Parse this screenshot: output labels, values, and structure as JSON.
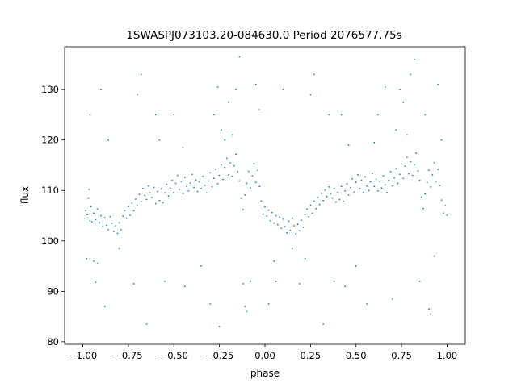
{
  "chart_data": {
    "type": "scatter",
    "title": "1SWASPJ073103.20-084630.0 Period 2076577.75s",
    "xlabel": "phase",
    "ylabel": "flux",
    "xlim": [
      -1.1,
      1.1
    ],
    "ylim": [
      79.5,
      138.5
    ],
    "xticks": [
      {
        "value": -1.0,
        "label": "−1.00"
      },
      {
        "value": -0.75,
        "label": "−0.75"
      },
      {
        "value": -0.5,
        "label": "−0.50"
      },
      {
        "value": -0.25,
        "label": "−0.25"
      },
      {
        "value": 0.0,
        "label": "0.00"
      },
      {
        "value": 0.25,
        "label": "0.25"
      },
      {
        "value": 0.5,
        "label": "0.50"
      },
      {
        "value": 0.75,
        "label": "0.75"
      },
      {
        "value": 1.0,
        "label": "1.00"
      }
    ],
    "yticks": [
      {
        "value": 80,
        "label": "80"
      },
      {
        "value": 90,
        "label": "90"
      },
      {
        "value": 100,
        "label": "100"
      },
      {
        "value": 110,
        "label": "110"
      },
      {
        "value": 120,
        "label": "120"
      },
      {
        "value": 130,
        "label": "130"
      }
    ],
    "grid": false,
    "marker_color": "#1f77b4",
    "series": [
      {
        "values": [
          [
            -0.99,
            104.5
          ],
          [
            -0.985,
            106.0
          ],
          [
            -0.975,
            105.2
          ],
          [
            -0.97,
            108.5
          ],
          [
            -0.965,
            110.2
          ],
          [
            -0.96,
            104.0
          ],
          [
            -0.955,
            106.8
          ],
          [
            -0.95,
            103.8
          ],
          [
            -0.94,
            105.5
          ],
          [
            -0.93,
            104.2
          ],
          [
            -0.92,
            106.3
          ],
          [
            -0.91,
            103.6
          ],
          [
            -0.9,
            105.0
          ],
          [
            -0.89,
            102.9
          ],
          [
            -0.88,
            104.6
          ],
          [
            -0.87,
            103.1
          ],
          [
            -0.86,
            102.2
          ],
          [
            -0.85,
            104.8
          ],
          [
            -0.84,
            103.5
          ],
          [
            -0.83,
            101.9
          ],
          [
            -0.82,
            103.0
          ],
          [
            -0.81,
            101.5
          ],
          [
            -0.8,
            103.6
          ],
          [
            -0.79,
            102.2
          ],
          [
            -0.78,
            104.9
          ],
          [
            -0.77,
            106.0
          ],
          [
            -0.76,
            104.5
          ],
          [
            -0.75,
            106.8
          ],
          [
            -0.74,
            105.1
          ],
          [
            -0.73,
            107.5
          ],
          [
            -0.72,
            106.0
          ],
          [
            -0.71,
            108.3
          ],
          [
            -0.7,
            107.0
          ],
          [
            -0.69,
            109.2
          ],
          [
            -0.68,
            107.8
          ],
          [
            -0.67,
            110.4
          ],
          [
            -0.66,
            109.0
          ],
          [
            -0.65,
            108.2
          ],
          [
            -0.64,
            110.9
          ],
          [
            -0.63,
            109.5
          ],
          [
            -0.62,
            108.6
          ],
          [
            -0.61,
            110.6
          ],
          [
            -0.6,
            107.4
          ],
          [
            -0.59,
            109.8
          ],
          [
            -0.58,
            108.0
          ],
          [
            -0.57,
            110.3
          ],
          [
            -0.56,
            107.6
          ],
          [
            -0.55,
            109.5
          ],
          [
            -0.54,
            111.2
          ],
          [
            -0.53,
            108.9
          ],
          [
            -0.52,
            110.5
          ],
          [
            -0.51,
            112.0
          ],
          [
            -0.5,
            109.6
          ],
          [
            -0.49,
            111.4
          ],
          [
            -0.48,
            113.0
          ],
          [
            -0.47,
            110.2
          ],
          [
            -0.46,
            111.8
          ],
          [
            -0.45,
            109.4
          ],
          [
            -0.44,
            112.6
          ],
          [
            -0.43,
            110.8
          ],
          [
            -0.42,
            109.9
          ],
          [
            -0.41,
            111.5
          ],
          [
            -0.4,
            113.2
          ],
          [
            -0.39,
            110.6
          ],
          [
            -0.38,
            112.1
          ],
          [
            -0.37,
            109.8
          ],
          [
            -0.36,
            111.7
          ],
          [
            -0.35,
            110.4
          ],
          [
            -0.34,
            112.8
          ],
          [
            -0.33,
            111.0
          ],
          [
            -0.32,
            109.5
          ],
          [
            -0.31,
            111.9
          ],
          [
            -0.3,
            113.5
          ],
          [
            -0.29,
            110.7
          ],
          [
            -0.28,
            112.4
          ],
          [
            -0.27,
            114.2
          ],
          [
            -0.26,
            111.3
          ],
          [
            -0.25,
            113.0
          ],
          [
            -0.24,
            115.1
          ],
          [
            -0.23,
            112.2
          ],
          [
            -0.22,
            114.6
          ],
          [
            -0.21,
            116.4
          ],
          [
            -0.2,
            113.1
          ],
          [
            -0.19,
            115.5
          ],
          [
            -0.18,
            112.8
          ],
          [
            -0.17,
            114.9
          ],
          [
            -0.16,
            117.2
          ],
          [
            -0.15,
            113.7
          ],
          [
            -0.14,
            111.9
          ],
          [
            -0.13,
            108.5
          ],
          [
            -0.12,
            106.2
          ],
          [
            -0.11,
            109.1
          ],
          [
            -0.1,
            111.4
          ],
          [
            -0.09,
            113.8
          ],
          [
            -0.08,
            110.5
          ],
          [
            -0.07,
            112.9
          ],
          [
            -0.06,
            115.3
          ],
          [
            -0.05,
            111.6
          ],
          [
            -0.04,
            114.0
          ],
          [
            -0.03,
            110.8
          ],
          [
            -0.02,
            107.9
          ],
          [
            -0.01,
            105.3
          ],
          [
            0.0,
            106.7
          ],
          [
            0.01,
            104.9
          ],
          [
            0.02,
            106.1
          ],
          [
            0.03,
            104.0
          ],
          [
            0.04,
            105.6
          ],
          [
            0.05,
            103.5
          ],
          [
            0.06,
            105.0
          ],
          [
            0.07,
            103.2
          ],
          [
            0.08,
            104.7
          ],
          [
            0.09,
            102.5
          ],
          [
            0.1,
            104.3
          ],
          [
            0.11,
            102.8
          ],
          [
            0.12,
            101.6
          ],
          [
            0.13,
            103.9
          ],
          [
            0.14,
            102.1
          ],
          [
            0.15,
            104.5
          ],
          [
            0.16,
            103.0
          ],
          [
            0.17,
            101.4
          ],
          [
            0.18,
            103.3
          ],
          [
            0.19,
            102.0
          ],
          [
            0.2,
            104.1
          ],
          [
            0.21,
            102.7
          ],
          [
            0.22,
            105.2
          ],
          [
            0.23,
            106.3
          ],
          [
            0.24,
            104.8
          ],
          [
            0.25,
            107.1
          ],
          [
            0.26,
            105.5
          ],
          [
            0.27,
            107.9
          ],
          [
            0.28,
            106.4
          ],
          [
            0.29,
            108.6
          ],
          [
            0.3,
            107.2
          ],
          [
            0.31,
            109.4
          ],
          [
            0.32,
            108.0
          ],
          [
            0.33,
            110.1
          ],
          [
            0.34,
            108.8
          ],
          [
            0.35,
            110.7
          ],
          [
            0.36,
            109.3
          ],
          [
            0.37,
            108.5
          ],
          [
            0.38,
            110.4
          ],
          [
            0.39,
            107.7
          ],
          [
            0.4,
            109.6
          ],
          [
            0.41,
            108.2
          ],
          [
            0.42,
            110.8
          ],
          [
            0.43,
            107.9
          ],
          [
            0.44,
            109.9
          ],
          [
            0.45,
            111.3
          ],
          [
            0.46,
            109.1
          ],
          [
            0.47,
            110.6
          ],
          [
            0.48,
            112.3
          ],
          [
            0.49,
            109.7
          ],
          [
            0.5,
            111.6
          ],
          [
            0.51,
            113.1
          ],
          [
            0.52,
            110.4
          ],
          [
            0.53,
            112.0
          ],
          [
            0.54,
            109.6
          ],
          [
            0.55,
            112.7
          ],
          [
            0.56,
            110.9
          ],
          [
            0.57,
            110.0
          ],
          [
            0.58,
            111.7
          ],
          [
            0.59,
            113.4
          ],
          [
            0.6,
            110.8
          ],
          [
            0.61,
            112.2
          ],
          [
            0.62,
            109.9
          ],
          [
            0.63,
            111.8
          ],
          [
            0.64,
            110.5
          ],
          [
            0.65,
            112.9
          ],
          [
            0.66,
            111.1
          ],
          [
            0.67,
            109.6
          ],
          [
            0.68,
            112.0
          ],
          [
            0.69,
            113.7
          ],
          [
            0.7,
            110.9
          ],
          [
            0.71,
            112.5
          ],
          [
            0.72,
            114.3
          ],
          [
            0.73,
            111.4
          ],
          [
            0.74,
            113.2
          ],
          [
            0.75,
            115.3
          ],
          [
            0.76,
            112.4
          ],
          [
            0.77,
            114.8
          ],
          [
            0.78,
            116.6
          ],
          [
            0.79,
            113.3
          ],
          [
            0.8,
            115.7
          ],
          [
            0.81,
            113.0
          ],
          [
            0.82,
            115.1
          ],
          [
            0.83,
            117.4
          ],
          [
            0.84,
            113.9
          ],
          [
            0.85,
            112.0
          ],
          [
            0.86,
            108.7
          ],
          [
            0.87,
            106.4
          ],
          [
            0.88,
            109.3
          ],
          [
            0.89,
            111.6
          ],
          [
            0.9,
            114.0
          ],
          [
            0.91,
            110.7
          ],
          [
            0.92,
            113.1
          ],
          [
            0.93,
            115.5
          ],
          [
            0.94,
            111.8
          ],
          [
            0.95,
            114.2
          ],
          [
            0.96,
            111.0
          ],
          [
            0.97,
            108.1
          ],
          [
            0.98,
            105.5
          ],
          [
            0.99,
            107.0
          ],
          [
            1.0,
            105.1
          ],
          [
            -0.96,
            125.0
          ],
          [
            -0.94,
            96.0
          ],
          [
            -0.93,
            91.8
          ],
          [
            -0.9,
            130.0
          ],
          [
            -0.88,
            87.0
          ],
          [
            -0.8,
            98.5
          ],
          [
            -0.72,
            91.5
          ],
          [
            -0.7,
            129.0
          ],
          [
            -0.68,
            133.0
          ],
          [
            -0.65,
            83.5
          ],
          [
            -0.6,
            125.0
          ],
          [
            -0.55,
            92.0
          ],
          [
            -0.5,
            125.0
          ],
          [
            -0.44,
            91.0
          ],
          [
            -0.35,
            95.0
          ],
          [
            -0.3,
            87.5
          ],
          [
            -0.28,
            125.0
          ],
          [
            -0.26,
            130.5
          ],
          [
            -0.25,
            83.0
          ],
          [
            -0.24,
            122.0
          ],
          [
            -0.22,
            120.0
          ],
          [
            -0.2,
            127.5
          ],
          [
            -0.18,
            121.0
          ],
          [
            -0.16,
            130.0
          ],
          [
            -0.14,
            136.5
          ],
          [
            -0.12,
            91.5
          ],
          [
            -0.11,
            87.0
          ],
          [
            -0.1,
            86.0
          ],
          [
            -0.08,
            92.0
          ],
          [
            -0.05,
            131.0
          ],
          [
            -0.03,
            126.0
          ],
          [
            0.02,
            87.5
          ],
          [
            0.05,
            96.0
          ],
          [
            0.06,
            92.0
          ],
          [
            0.1,
            130.0
          ],
          [
            0.15,
            98.5
          ],
          [
            0.19,
            91.5
          ],
          [
            0.22,
            96.5
          ],
          [
            0.25,
            129.0
          ],
          [
            0.27,
            133.0
          ],
          [
            0.32,
            83.5
          ],
          [
            0.35,
            125.0
          ],
          [
            0.38,
            92.0
          ],
          [
            0.42,
            125.0
          ],
          [
            0.44,
            91.0
          ],
          [
            0.5,
            95.0
          ],
          [
            0.56,
            87.5
          ],
          [
            0.62,
            125.0
          ],
          [
            0.66,
            130.5
          ],
          [
            0.7,
            88.5
          ],
          [
            0.72,
            122.0
          ],
          [
            0.74,
            130.0
          ],
          [
            0.76,
            127.5
          ],
          [
            0.78,
            121.0
          ],
          [
            0.8,
            133.0
          ],
          [
            0.82,
            136.0
          ],
          [
            0.85,
            92.0
          ],
          [
            0.88,
            125.0
          ],
          [
            0.9,
            86.5
          ],
          [
            0.91,
            85.5
          ],
          [
            0.93,
            97.0
          ],
          [
            0.95,
            131.0
          ],
          [
            0.97,
            120.0
          ],
          [
            -0.98,
            96.5
          ],
          [
            -0.92,
            95.5
          ],
          [
            -0.86,
            120.0
          ],
          [
            -0.58,
            120.0
          ],
          [
            -0.45,
            118.5
          ],
          [
            0.46,
            119.0
          ],
          [
            0.6,
            119.5
          ]
        ]
      }
    ]
  }
}
